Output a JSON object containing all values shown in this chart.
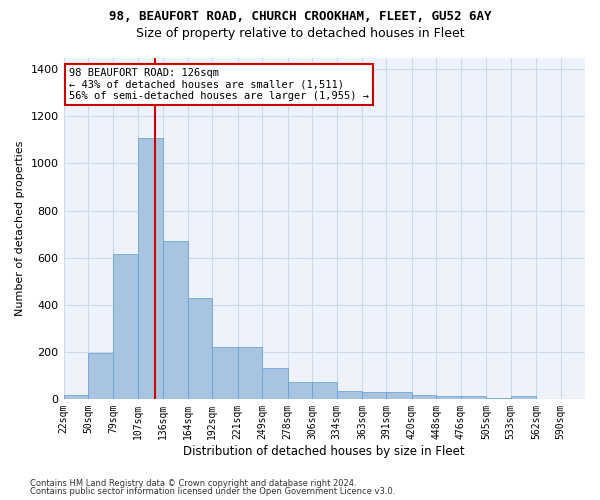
{
  "title": "98, BEAUFORT ROAD, CHURCH CROOKHAM, FLEET, GU52 6AY",
  "subtitle": "Size of property relative to detached houses in Fleet",
  "xlabel": "Distribution of detached houses by size in Fleet",
  "ylabel": "Number of detached properties",
  "footnote1": "Contains HM Land Registry data © Crown copyright and database right 2024.",
  "footnote2": "Contains public sector information licensed under the Open Government Licence v3.0.",
  "annotation_line1": "98 BEAUFORT ROAD: 126sqm",
  "annotation_line2": "← 43% of detached houses are smaller (1,511)",
  "annotation_line3": "56% of semi-detached houses are larger (1,955) →",
  "property_sqm": 126,
  "bar_labels": [
    "22sqm",
    "50sqm",
    "79sqm",
    "107sqm",
    "136sqm",
    "164sqm",
    "192sqm",
    "221sqm",
    "249sqm",
    "278sqm",
    "306sqm",
    "334sqm",
    "363sqm",
    "391sqm",
    "420sqm",
    "448sqm",
    "476sqm",
    "505sqm",
    "533sqm",
    "562sqm",
    "590sqm"
  ],
  "bar_values": [
    18,
    193,
    614,
    1107,
    671,
    428,
    220,
    220,
    130,
    72,
    72,
    32,
    30,
    27,
    18,
    13,
    10,
    5,
    10,
    0,
    0
  ],
  "bar_edges": [
    22,
    50,
    79,
    107,
    136,
    164,
    192,
    221,
    249,
    278,
    306,
    334,
    363,
    391,
    420,
    448,
    476,
    505,
    533,
    562,
    590,
    618
  ],
  "bar_color": "#a8c4e0",
  "bar_edge_color": "#5a9fd4",
  "grid_color": "#d0d8e8",
  "bg_color": "#eef2fa",
  "red_line_x": 126,
  "annotation_box_color": "#cc0000",
  "ylim": [
    0,
    1450
  ],
  "yticks": [
    0,
    200,
    400,
    600,
    800,
    1000,
    1200,
    1400
  ],
  "title_fontsize": 9,
  "subtitle_fontsize": 9,
  "ylabel_fontsize": 8,
  "xlabel_fontsize": 8.5
}
